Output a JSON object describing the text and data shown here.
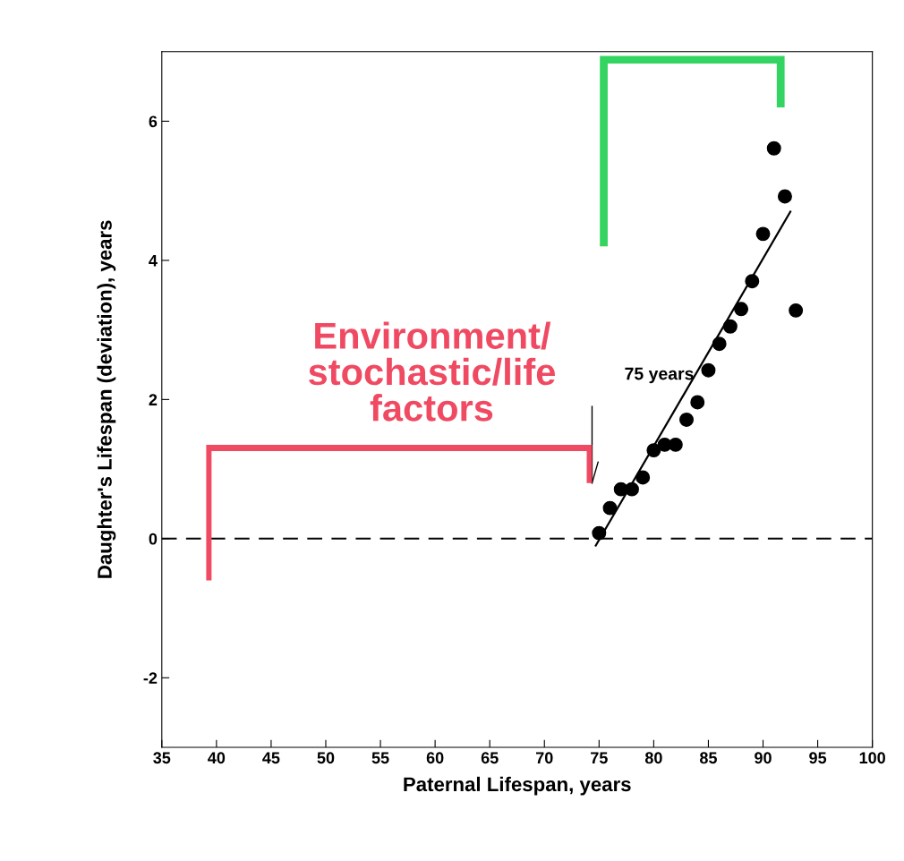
{
  "chart_data": {
    "type": "scatter",
    "xlabel": "Paternal Lifespan, years",
    "ylabel": "Daughter's Lifespan (deviation), years",
    "xlim": [
      35,
      100
    ],
    "xticks": [
      35,
      40,
      45,
      50,
      55,
      60,
      65,
      70,
      75,
      80,
      85,
      90,
      95,
      100
    ],
    "ylim": [
      -3,
      7
    ],
    "yticks": [
      -2,
      0,
      2,
      4,
      6
    ],
    "grid": false,
    "legend": false,
    "series": [
      {
        "marker": "circle",
        "color": "#000000",
        "x": [
          75,
          76,
          77,
          78,
          79,
          80,
          81,
          82,
          83,
          84,
          85,
          86,
          87,
          88,
          89,
          90,
          91,
          92,
          93
        ],
        "values": [
          0.08,
          0.44,
          0.71,
          0.71,
          0.88,
          1.27,
          1.35,
          1.35,
          1.71,
          1.96,
          2.42,
          2.8,
          3.05,
          3.3,
          3.7,
          4.38,
          5.61,
          4.92,
          3.28
        ]
      },
      {
        "type": "line",
        "marker": "none",
        "color": "#000000",
        "x": [
          74.7,
          92.5
        ],
        "values": [
          -0.1,
          4.7
        ]
      }
    ],
    "ref_lines": [
      {
        "axis": "y",
        "value": 0,
        "color": "#000000",
        "line_style": "dashed"
      }
    ],
    "annotations": [
      "Environment/\nstochastic/life\nfactors",
      "75 years"
    ]
  }
}
